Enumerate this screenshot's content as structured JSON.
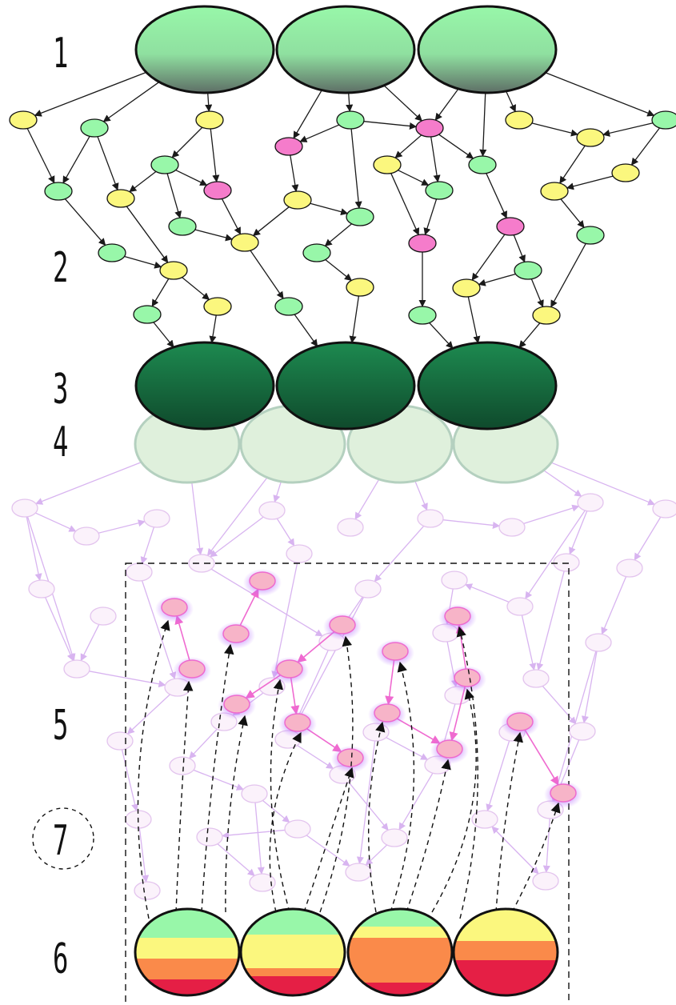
{
  "steps": {
    "s1": "1",
    "s2": "2",
    "s3": "3",
    "s4": "4",
    "s5": "5",
    "s6": "6",
    "s7": "7"
  },
  "colors": {
    "light_green": "#98f7a9",
    "yellow": "#fbf77e",
    "magenta": "#f57ccb",
    "dark_green": "#1b6b40",
    "faint_node": "#fbf2fb",
    "highlight_node": "#f7b4c8",
    "orange": "#fa8a4a",
    "red": "#e51f45"
  },
  "stripe_bands": [
    [
      "#98f7a9",
      "#fbf77e",
      "#fa8a4a",
      "#e51f45"
    ],
    [
      "#98f7a9",
      "#fbf77e",
      "#fa8a4a",
      "#e51f45"
    ],
    [
      "#98f7a9",
      "#fbf77e",
      "#fa8a4a",
      "#e51f45"
    ],
    [
      "#fbf77e",
      "#fa8a4a",
      "#e51f45"
    ]
  ]
}
